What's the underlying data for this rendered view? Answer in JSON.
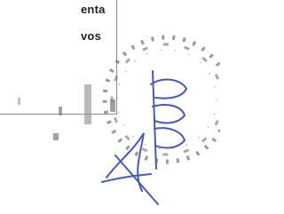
{
  "box": {
    "lines": [
      "enta",
      "vos"
    ]
  }
}
